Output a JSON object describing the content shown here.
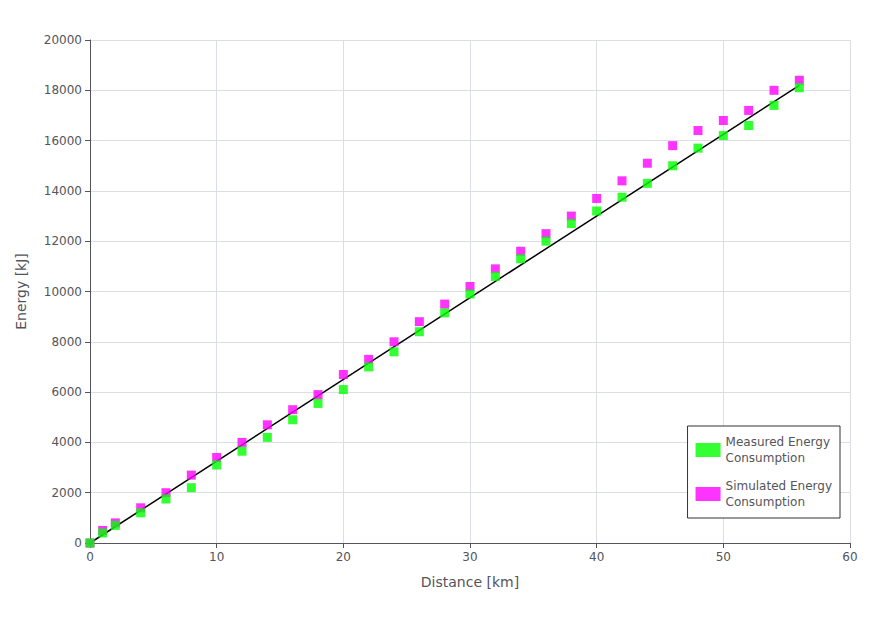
{
  "chart_data": {
    "type": "scatter",
    "xlabel": "Distance [km]",
    "ylabel": "Energy [kJ]",
    "xlim": [
      0,
      60
    ],
    "ylim": [
      0,
      20000
    ],
    "xticks": [
      0,
      10,
      20,
      30,
      40,
      50,
      60
    ],
    "yticks": [
      0,
      2000,
      4000,
      6000,
      8000,
      10000,
      12000,
      14000,
      16000,
      18000,
      20000
    ],
    "grid": true,
    "legend": "lower right",
    "series": [
      {
        "type": "line",
        "color": "#000000",
        "line_style": "solid",
        "x": [
          0,
          56
        ],
        "values": [
          0,
          18200
        ]
      },
      {
        "name": "Measured Energy\nConsumption",
        "type": "scatter",
        "marker": "square",
        "color": "#00ff00",
        "x": [
          0,
          1,
          2,
          4,
          6,
          8,
          10,
          12,
          14,
          16,
          18,
          20,
          22,
          24,
          26,
          28,
          30,
          32,
          34,
          36,
          38,
          40,
          42,
          44,
          46,
          48,
          50,
          52,
          54,
          56
        ],
        "values": [
          0,
          400,
          700,
          1200,
          1750,
          2200,
          3100,
          3650,
          4200,
          4900,
          5550,
          6100,
          7000,
          7600,
          8400,
          9150,
          9900,
          10600,
          11300,
          12000,
          12700,
          13200,
          13750,
          14300,
          15000,
          15700,
          16200,
          16600,
          17400,
          18100
        ]
      },
      {
        "name": "Simulated Energy\nConsumption",
        "type": "scatter",
        "marker": "square",
        "color": "#ff00ff",
        "x": [
          0,
          1,
          2,
          4,
          6,
          8,
          10,
          12,
          14,
          16,
          18,
          20,
          22,
          24,
          26,
          28,
          30,
          32,
          34,
          36,
          38,
          40,
          42,
          44,
          46,
          48,
          50,
          52,
          54,
          56
        ],
        "values": [
          0,
          500,
          800,
          1400,
          2000,
          2700,
          3400,
          4000,
          4700,
          5300,
          5900,
          6700,
          7300,
          8000,
          8800,
          9500,
          10200,
          10900,
          11600,
          12300,
          13000,
          13700,
          14400,
          15100,
          15800,
          16400,
          16800,
          17200,
          18000,
          18400
        ]
      }
    ]
  }
}
